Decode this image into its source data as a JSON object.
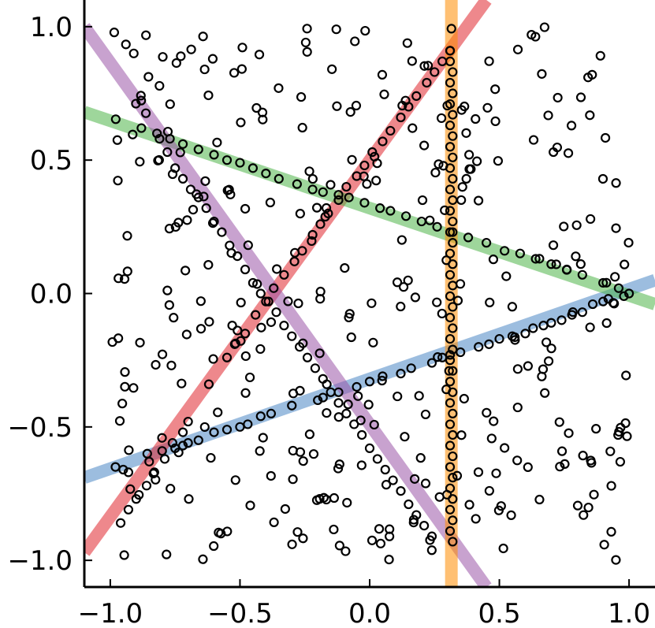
{
  "chart_data": {
    "type": "scatter",
    "title": "",
    "xlabel": "",
    "ylabel": "",
    "xlim": [
      -1.1,
      1.1
    ],
    "ylim": [
      -1.1,
      1.1
    ],
    "grid": false,
    "legend": "none",
    "x_ticks": [
      {
        "value": -1.0,
        "label": "−1.0"
      },
      {
        "value": -0.5,
        "label": "−0.5"
      },
      {
        "value": 0.0,
        "label": "0.0"
      },
      {
        "value": 0.5,
        "label": "0.5"
      },
      {
        "value": 1.0,
        "label": "1.0"
      }
    ],
    "y_ticks": [
      {
        "value": 1.0,
        "label": "1.0"
      },
      {
        "value": 0.5,
        "label": "0.5"
      },
      {
        "value": 0.0,
        "label": "0.0"
      },
      {
        "value": -0.5,
        "label": "−0.5"
      },
      {
        "value": -1.0,
        "label": "−1.0"
      }
    ],
    "fitted_lines": [
      {
        "color": "#4a86c4",
        "points": [
          [
            -1.1,
            -0.69
          ],
          [
            1.1,
            0.05
          ]
        ]
      },
      {
        "color": "#e0262d",
        "points": [
          [
            -1.1,
            -0.97
          ],
          [
            0.45,
            1.1
          ]
        ]
      },
      {
        "color": "#4fb548",
        "points": [
          [
            -1.1,
            0.68
          ],
          [
            1.1,
            -0.04
          ]
        ]
      },
      {
        "color": "#9b55a8",
        "points": [
          [
            -1.1,
            1.0
          ],
          [
            0.45,
            -1.1
          ]
        ]
      },
      {
        "color": "#ff8c00",
        "points": [
          [
            0.315,
            -1.1
          ],
          [
            0.315,
            1.1
          ]
        ]
      }
    ],
    "on_line_points": {
      "blue": [
        [
          -0.98,
          -0.65
        ],
        [
          -0.95,
          -0.66
        ],
        [
          -0.93,
          -0.67
        ],
        [
          -0.85,
          -0.63
        ],
        [
          -0.8,
          -0.59
        ],
        [
          -0.75,
          -0.58
        ],
        [
          -0.72,
          -0.57
        ],
        [
          -0.7,
          -0.56
        ],
        [
          -0.66,
          -0.55
        ],
        [
          -0.6,
          -0.52
        ],
        [
          -0.55,
          -0.51
        ],
        [
          -0.5,
          -0.5
        ],
        [
          -0.47,
          -0.49
        ],
        [
          -0.42,
          -0.46
        ],
        [
          -0.38,
          -0.45
        ],
        [
          -0.3,
          -0.42
        ],
        [
          -0.2,
          -0.4
        ],
        [
          -0.18,
          -0.39
        ],
        [
          -0.12,
          -0.37
        ],
        [
          -0.05,
          -0.35
        ],
        [
          0.0,
          -0.33
        ],
        [
          0.05,
          -0.31
        ],
        [
          0.12,
          -0.3
        ],
        [
          0.16,
          -0.28
        ],
        [
          0.24,
          -0.26
        ],
        [
          0.28,
          -0.24
        ],
        [
          0.31,
          -0.23
        ],
        [
          0.35,
          -0.22
        ],
        [
          0.42,
          -0.2
        ],
        [
          0.46,
          -0.19
        ],
        [
          0.5,
          -0.17
        ],
        [
          0.55,
          -0.16
        ],
        [
          0.6,
          -0.15
        ],
        [
          0.63,
          -0.13
        ],
        [
          0.67,
          -0.12
        ],
        [
          0.7,
          -0.11
        ],
        [
          0.74,
          -0.1
        ],
        [
          0.78,
          -0.08
        ],
        [
          0.82,
          -0.07
        ],
        [
          0.86,
          -0.04
        ],
        [
          0.9,
          -0.03
        ],
        [
          0.92,
          -0.02
        ],
        [
          0.98,
          -0.01
        ],
        [
          1.0,
          0.0
        ]
      ],
      "red": [
        [
          -0.96,
          -0.86
        ],
        [
          -0.93,
          -0.81
        ],
        [
          -0.9,
          -0.77
        ],
        [
          -0.86,
          -0.72
        ],
        [
          -0.83,
          -0.67
        ],
        [
          -0.79,
          -0.62
        ],
        [
          -0.76,
          -0.56
        ],
        [
          -0.72,
          -0.52
        ],
        [
          -0.7,
          -0.48
        ],
        [
          -0.62,
          -0.34
        ],
        [
          -0.55,
          -0.24
        ],
        [
          -0.52,
          -0.19
        ],
        [
          -0.48,
          -0.15
        ],
        [
          -0.44,
          -0.08
        ],
        [
          -0.4,
          -0.03
        ],
        [
          -0.37,
          0.02
        ],
        [
          -0.33,
          0.07
        ],
        [
          -0.29,
          0.12
        ],
        [
          -0.26,
          0.16
        ],
        [
          -0.22,
          0.22
        ],
        [
          -0.19,
          0.26
        ],
        [
          -0.16,
          0.3
        ],
        [
          -0.12,
          0.35
        ],
        [
          -0.09,
          0.4
        ],
        [
          -0.05,
          0.44
        ],
        [
          -0.02,
          0.48
        ],
        [
          0.01,
          0.53
        ],
        [
          0.05,
          0.57
        ],
        [
          0.08,
          0.61
        ],
        [
          0.12,
          0.66
        ],
        [
          0.15,
          0.7
        ],
        [
          0.18,
          0.74
        ],
        [
          0.22,
          0.79
        ],
        [
          0.25,
          0.83
        ],
        [
          0.28,
          0.87
        ],
        [
          0.31,
          0.91
        ]
      ],
      "green": [
        [
          -0.88,
          0.62
        ],
        [
          -0.82,
          0.6
        ],
        [
          -0.77,
          0.58
        ],
        [
          -0.72,
          0.56
        ],
        [
          -0.66,
          0.54
        ],
        [
          -0.6,
          0.52
        ],
        [
          -0.55,
          0.5
        ],
        [
          -0.5,
          0.49
        ],
        [
          -0.45,
          0.47
        ],
        [
          -0.4,
          0.45
        ],
        [
          -0.35,
          0.43
        ],
        [
          -0.28,
          0.41
        ],
        [
          -0.22,
          0.39
        ],
        [
          -0.18,
          0.38
        ],
        [
          -0.12,
          0.37
        ],
        [
          -0.08,
          0.36
        ],
        [
          -0.02,
          0.34
        ],
        [
          0.04,
          0.32
        ],
        [
          0.08,
          0.31
        ],
        [
          0.14,
          0.29
        ],
        [
          0.2,
          0.27
        ],
        [
          0.26,
          0.25
        ],
        [
          0.32,
          0.23
        ],
        [
          0.38,
          0.21
        ],
        [
          0.45,
          0.19
        ],
        [
          0.52,
          0.16
        ],
        [
          0.58,
          0.15
        ],
        [
          0.64,
          0.13
        ],
        [
          0.7,
          0.11
        ],
        [
          0.76,
          0.09
        ],
        [
          0.82,
          0.07
        ],
        [
          0.9,
          0.04
        ],
        [
          0.96,
          0.02
        ]
      ],
      "purple": [
        [
          -0.81,
          0.58
        ],
        [
          -0.78,
          0.53
        ],
        [
          -0.75,
          0.47
        ],
        [
          -0.72,
          0.43
        ],
        [
          -0.69,
          0.39
        ],
        [
          -0.66,
          0.36
        ],
        [
          -0.63,
          0.32
        ],
        [
          -0.6,
          0.27
        ],
        [
          -0.57,
          0.23
        ],
        [
          -0.54,
          0.18
        ],
        [
          -0.51,
          0.14
        ],
        [
          -0.48,
          0.09
        ],
        [
          -0.45,
          0.04
        ],
        [
          -0.42,
          0.0
        ],
        [
          -0.39,
          -0.03
        ],
        [
          -0.36,
          -0.07
        ],
        [
          -0.33,
          -0.12
        ],
        [
          -0.3,
          -0.16
        ],
        [
          -0.27,
          -0.2
        ],
        [
          -0.24,
          -0.24
        ],
        [
          -0.21,
          -0.28
        ],
        [
          -0.18,
          -0.32
        ],
        [
          -0.15,
          -0.37
        ],
        [
          -0.12,
          -0.41
        ],
        [
          -0.09,
          -0.45
        ],
        [
          -0.06,
          -0.49
        ],
        [
          -0.03,
          -0.53
        ],
        [
          0.0,
          -0.58
        ],
        [
          0.03,
          -0.62
        ],
        [
          0.06,
          -0.66
        ],
        [
          0.09,
          -0.7
        ],
        [
          0.12,
          -0.74
        ],
        [
          0.15,
          -0.79
        ],
        [
          0.18,
          -0.83
        ],
        [
          0.21,
          -0.87
        ],
        [
          0.24,
          -0.91
        ]
      ],
      "orange": [
        [
          0.31,
          0.91
        ],
        [
          0.31,
          0.87
        ],
        [
          0.32,
          0.83
        ],
        [
          0.31,
          0.79
        ],
        [
          0.32,
          0.75
        ],
        [
          0.31,
          0.71
        ],
        [
          0.32,
          0.67
        ],
        [
          0.31,
          0.63
        ],
        [
          0.32,
          0.59
        ],
        [
          0.31,
          0.55
        ],
        [
          0.32,
          0.51
        ],
        [
          0.31,
          0.47
        ],
        [
          0.32,
          0.43
        ],
        [
          0.31,
          0.39
        ],
        [
          0.32,
          0.35
        ],
        [
          0.31,
          0.31
        ],
        [
          0.32,
          0.27
        ],
        [
          0.31,
          0.23
        ],
        [
          0.32,
          0.19
        ],
        [
          0.31,
          0.15
        ],
        [
          0.32,
          0.11
        ],
        [
          0.31,
          0.07
        ],
        [
          0.32,
          0.03
        ],
        [
          0.31,
          -0.01
        ],
        [
          0.32,
          -0.05
        ],
        [
          0.31,
          -0.09
        ],
        [
          0.32,
          -0.13
        ],
        [
          0.31,
          -0.17
        ],
        [
          0.32,
          -0.21
        ],
        [
          0.31,
          -0.25
        ],
        [
          0.32,
          -0.29
        ],
        [
          0.31,
          -0.33
        ],
        [
          0.32,
          -0.37
        ],
        [
          0.31,
          -0.41
        ],
        [
          0.32,
          -0.45
        ],
        [
          0.31,
          -0.49
        ],
        [
          0.32,
          -0.53
        ],
        [
          0.31,
          -0.57
        ],
        [
          0.32,
          -0.61
        ],
        [
          0.31,
          -0.65
        ],
        [
          0.32,
          -0.69
        ],
        [
          0.31,
          -0.73
        ],
        [
          0.32,
          -0.77
        ],
        [
          0.31,
          -0.81
        ],
        [
          0.32,
          -0.85
        ],
        [
          0.31,
          -0.89
        ],
        [
          0.32,
          -0.93
        ]
      ]
    },
    "random_points": {
      "count": 360,
      "x_range": [
        -1.0,
        1.0
      ],
      "y_range": [
        -1.0,
        1.0
      ],
      "seed": 7
    }
  }
}
